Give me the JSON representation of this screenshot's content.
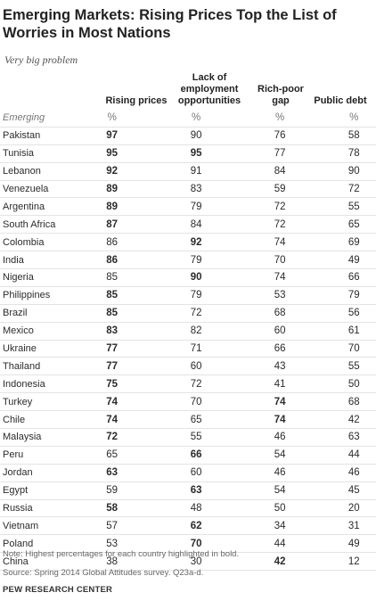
{
  "title": "Emerging Markets:  Rising Prices Top the List of Worries in Most Nations",
  "subtitle": "Very big problem",
  "columns": [
    {
      "l1": "",
      "l2": "",
      "l3": "Rising prices"
    },
    {
      "l1": "Lack of",
      "l2": "employment",
      "l3": "opportunities"
    },
    {
      "l1": "",
      "l2": "Rich-poor",
      "l3": "gap"
    },
    {
      "l1": "",
      "l2": "",
      "l3": "Public debt"
    }
  ],
  "group_label": "Emerging",
  "unit": "%",
  "note": "Note: Highest percentages for each country highlighted in bold.",
  "source": "Source: Spring 2014 Global Attitudes survey. Q23a-d.",
  "brand": "PEW RESEARCH CENTER",
  "chart_data": {
    "type": "table",
    "title": "Emerging Markets:  Rising Prices Top the List of Worries in Most Nations",
    "subtitle": "Very big problem",
    "columns": [
      "Rising prices",
      "Lack of employment opportunities",
      "Rich-poor gap",
      "Public debt"
    ],
    "rows": [
      {
        "country": "Pakistan",
        "values": [
          97,
          90,
          76,
          58
        ],
        "bold": [
          true,
          false,
          false,
          false
        ]
      },
      {
        "country": "Tunisia",
        "values": [
          95,
          95,
          77,
          78
        ],
        "bold": [
          true,
          true,
          false,
          false
        ]
      },
      {
        "country": "Lebanon",
        "values": [
          92,
          91,
          84,
          90
        ],
        "bold": [
          true,
          false,
          false,
          false
        ]
      },
      {
        "country": "Venezuela",
        "values": [
          89,
          83,
          59,
          72
        ],
        "bold": [
          true,
          false,
          false,
          false
        ]
      },
      {
        "country": "Argentina",
        "values": [
          89,
          79,
          72,
          55
        ],
        "bold": [
          true,
          false,
          false,
          false
        ]
      },
      {
        "country": "South Africa",
        "values": [
          87,
          84,
          72,
          65
        ],
        "bold": [
          true,
          false,
          false,
          false
        ]
      },
      {
        "country": "Colombia",
        "values": [
          86,
          92,
          74,
          69
        ],
        "bold": [
          false,
          true,
          false,
          false
        ]
      },
      {
        "country": "India",
        "values": [
          86,
          79,
          70,
          49
        ],
        "bold": [
          true,
          false,
          false,
          false
        ]
      },
      {
        "country": "Nigeria",
        "values": [
          85,
          90,
          74,
          66
        ],
        "bold": [
          false,
          true,
          false,
          false
        ]
      },
      {
        "country": "Philippines",
        "values": [
          85,
          79,
          53,
          79
        ],
        "bold": [
          true,
          false,
          false,
          false
        ]
      },
      {
        "country": "Brazil",
        "values": [
          85,
          72,
          68,
          56
        ],
        "bold": [
          true,
          false,
          false,
          false
        ]
      },
      {
        "country": "Mexico",
        "values": [
          83,
          82,
          60,
          61
        ],
        "bold": [
          true,
          false,
          false,
          false
        ]
      },
      {
        "country": "Ukraine",
        "values": [
          77,
          71,
          66,
          70
        ],
        "bold": [
          true,
          false,
          false,
          false
        ]
      },
      {
        "country": "Thailand",
        "values": [
          77,
          60,
          43,
          55
        ],
        "bold": [
          true,
          false,
          false,
          false
        ]
      },
      {
        "country": "Indonesia",
        "values": [
          75,
          72,
          41,
          50
        ],
        "bold": [
          true,
          false,
          false,
          false
        ]
      },
      {
        "country": "Turkey",
        "values": [
          74,
          70,
          74,
          68
        ],
        "bold": [
          true,
          false,
          true,
          false
        ]
      },
      {
        "country": "Chile",
        "values": [
          74,
          65,
          74,
          42
        ],
        "bold": [
          true,
          false,
          true,
          false
        ]
      },
      {
        "country": "Malaysia",
        "values": [
          72,
          55,
          46,
          63
        ],
        "bold": [
          true,
          false,
          false,
          false
        ]
      },
      {
        "country": "Peru",
        "values": [
          65,
          66,
          54,
          44
        ],
        "bold": [
          false,
          true,
          false,
          false
        ]
      },
      {
        "country": "Jordan",
        "values": [
          63,
          60,
          46,
          46
        ],
        "bold": [
          true,
          false,
          false,
          false
        ]
      },
      {
        "country": "Egypt",
        "values": [
          59,
          63,
          54,
          45
        ],
        "bold": [
          false,
          true,
          false,
          false
        ]
      },
      {
        "country": "Russia",
        "values": [
          58,
          48,
          50,
          20
        ],
        "bold": [
          true,
          false,
          false,
          false
        ]
      },
      {
        "country": "Vietnam",
        "values": [
          57,
          62,
          34,
          31
        ],
        "bold": [
          false,
          true,
          false,
          false
        ]
      },
      {
        "country": "Poland",
        "values": [
          53,
          70,
          44,
          49
        ],
        "bold": [
          false,
          true,
          false,
          false
        ]
      },
      {
        "country": "China",
        "values": [
          38,
          30,
          42,
          12
        ],
        "bold": [
          false,
          false,
          true,
          false
        ]
      }
    ]
  }
}
